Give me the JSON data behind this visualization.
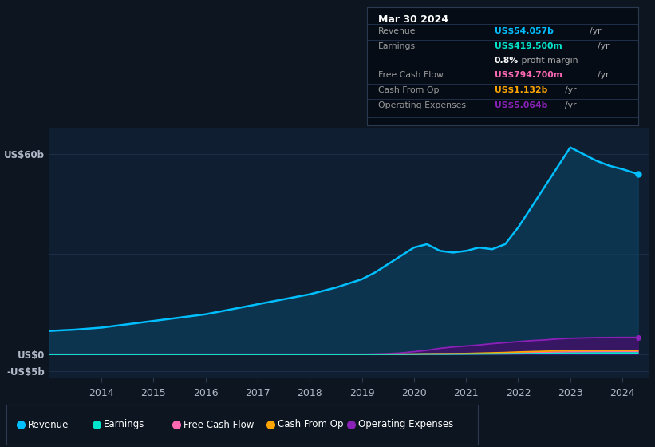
{
  "background_color": "#0d1520",
  "plot_bg_color": "#0d1520",
  "chart_bg_color": "#0f1e30",
  "grid_color": "#1e3048",
  "revenue_color": "#00bfff",
  "earnings_color": "#00e5cc",
  "fcf_color": "#ff69b4",
  "cashop_color": "#ffa500",
  "opex_color": "#8b22b8",
  "revenue_fill": "#0d4060",
  "opex_fill": "#4a0a6e",
  "tooltip_bg": "#050c15",
  "tooltip_border": "#2a3a50",
  "legend_labels": [
    "Revenue",
    "Earnings",
    "Free Cash Flow",
    "Cash From Op",
    "Operating Expenses"
  ],
  "legend_colors": [
    "#00bfff",
    "#00e5cc",
    "#ff69b4",
    "#ffa500",
    "#8b22b8"
  ],
  "xtick_years": [
    2014,
    2015,
    2016,
    2017,
    2018,
    2019,
    2020,
    2021,
    2022,
    2023,
    2024
  ],
  "ytick_vals": [
    60,
    0,
    -5
  ],
  "ytick_labels": [
    "US$60b",
    "US$0",
    "-US$5b"
  ]
}
